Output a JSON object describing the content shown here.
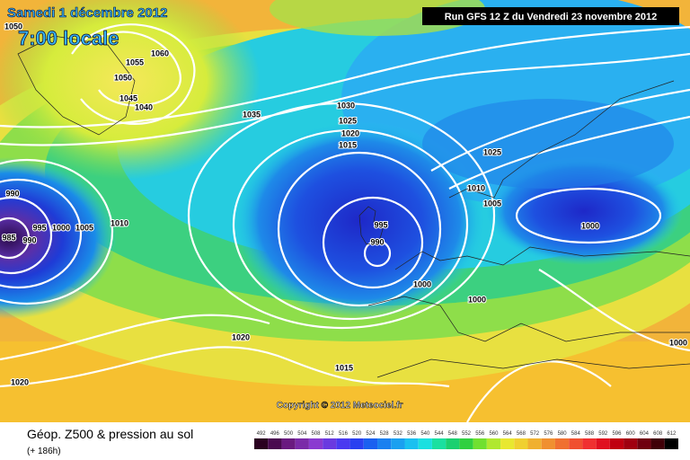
{
  "header": {
    "date": "Samedi 1 décembre 2012",
    "time": "7:00 locale",
    "run": "Run GFS 12 Z du Vendredi 23 novembre 2012"
  },
  "copyright": "Copyright © 2012 Meteociel.fr",
  "footer": {
    "title": "Géop. Z500 & pression au sol",
    "lead": "(+ 186h)"
  },
  "scale": [
    492,
    496,
    500,
    504,
    508,
    512,
    516,
    520,
    524,
    528,
    532,
    536,
    540,
    544,
    548,
    552,
    556,
    560,
    564,
    568,
    572,
    576,
    580,
    584,
    588,
    592,
    596,
    600,
    604,
    608,
    612
  ],
  "isobars": [
    1050,
    1060,
    1055,
    1050,
    1045,
    1040,
    1035,
    1030,
    1025,
    1020,
    1015,
    1025,
    1010,
    1005,
    1000,
    990,
    995,
    1000,
    1005,
    1010,
    985,
    990,
    995,
    990,
    1000,
    1000,
    1000,
    1020,
    1015,
    1020
  ]
}
